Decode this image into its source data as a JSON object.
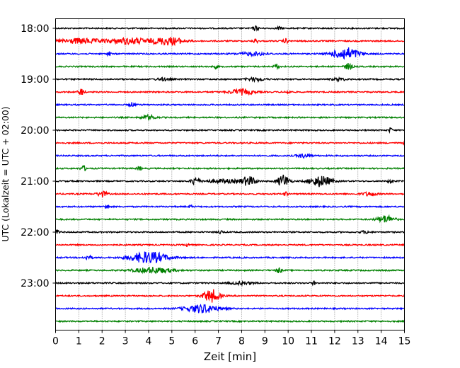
{
  "chart_data": {
    "type": "line",
    "title": "",
    "xlabel": "Zeit  [min]",
    "ylabel": "UTC (Lokalzeit = UTC + 02:00)",
    "xlim": [
      0,
      15
    ],
    "x_ticks": [
      0,
      1,
      2,
      3,
      4,
      5,
      6,
      7,
      8,
      9,
      10,
      11,
      12,
      13,
      14,
      15
    ],
    "vertical_grid": "dotted",
    "row_interval_minutes": 15,
    "row_colors": [
      "#000000",
      "#ff0000",
      "#0000ff",
      "#008000"
    ],
    "y_ticks": [
      "18:00",
      "19:00",
      "20:00",
      "21:00",
      "22:00",
      "23:00"
    ],
    "rows": [
      {
        "start": "18:00",
        "color": "#000000",
        "events": [
          {
            "t": 8.6,
            "a": 0.35,
            "w": 0.12
          },
          {
            "t": 9.6,
            "a": 0.25,
            "w": 0.1
          }
        ]
      },
      {
        "start": "18:15",
        "color": "#ff0000",
        "events": [
          {
            "t": 1.0,
            "a": 0.4,
            "w": 0.9
          },
          {
            "t": 3.2,
            "a": 0.45,
            "w": 1.0
          },
          {
            "t": 4.9,
            "a": 0.6,
            "w": 0.6
          },
          {
            "t": 8.6,
            "a": 0.35,
            "w": 0.1
          },
          {
            "t": 9.9,
            "a": 0.35,
            "w": 0.1
          }
        ]
      },
      {
        "start": "18:30",
        "color": "#0000ff",
        "events": [
          {
            "t": 2.3,
            "a": 0.6,
            "w": 0.06
          },
          {
            "t": 12.5,
            "a": 0.95,
            "w": 0.55
          },
          {
            "t": 8.5,
            "a": 0.25,
            "w": 0.6
          }
        ]
      },
      {
        "start": "18:45",
        "color": "#008000",
        "events": [
          {
            "t": 6.9,
            "a": 0.3,
            "w": 0.08
          },
          {
            "t": 9.5,
            "a": 0.45,
            "w": 0.1
          },
          {
            "t": 12.6,
            "a": 0.5,
            "w": 0.15
          }
        ]
      },
      {
        "start": "19:00",
        "color": "#000000",
        "events": [
          {
            "t": 4.6,
            "a": 0.2,
            "w": 0.3
          },
          {
            "t": 8.6,
            "a": 0.25,
            "w": 0.4
          },
          {
            "t": 12.2,
            "a": 0.2,
            "w": 0.3
          }
        ]
      },
      {
        "start": "19:15",
        "color": "#ff0000",
        "events": [
          {
            "t": 1.1,
            "a": 0.55,
            "w": 0.12
          },
          {
            "t": 8.0,
            "a": 0.45,
            "w": 0.5
          },
          {
            "t": 10.0,
            "a": 0.25,
            "w": 0.1
          }
        ]
      },
      {
        "start": "19:30",
        "color": "#0000ff",
        "events": [
          {
            "t": 3.3,
            "a": 0.35,
            "w": 0.12
          }
        ]
      },
      {
        "start": "19:45",
        "color": "#008000",
        "events": [
          {
            "t": 4.0,
            "a": 0.35,
            "w": 0.3
          }
        ]
      },
      {
        "start": "20:00",
        "color": "#000000",
        "events": [
          {
            "t": 14.4,
            "a": 0.45,
            "w": 0.06
          }
        ]
      },
      {
        "start": "20:15",
        "color": "#ff0000",
        "events": [
          {
            "t": 15.0,
            "a": 0.3,
            "w": 0.05
          }
        ]
      },
      {
        "start": "20:30",
        "color": "#0000ff",
        "events": [
          {
            "t": 10.7,
            "a": 0.3,
            "w": 0.3
          }
        ]
      },
      {
        "start": "20:45",
        "color": "#008000",
        "events": [
          {
            "t": 1.2,
            "a": 0.4,
            "w": 0.12
          },
          {
            "t": 3.6,
            "a": 0.3,
            "w": 0.1
          }
        ]
      },
      {
        "start": "21:00",
        "color": "#000000",
        "events": [
          {
            "t": 6.0,
            "a": 0.7,
            "w": 0.15
          },
          {
            "t": 8.3,
            "a": 0.7,
            "w": 0.3
          },
          {
            "t": 9.8,
            "a": 1.0,
            "w": 0.25
          },
          {
            "t": 11.4,
            "a": 0.85,
            "w": 0.45
          },
          {
            "t": 7.2,
            "a": 0.25,
            "w": 0.8
          },
          {
            "t": 14.4,
            "a": 0.3,
            "w": 0.1
          }
        ]
      },
      {
        "start": "21:15",
        "color": "#ff0000",
        "events": [
          {
            "t": 2.0,
            "a": 0.45,
            "w": 0.2
          },
          {
            "t": 9.9,
            "a": 0.45,
            "w": 0.06
          },
          {
            "t": 13.5,
            "a": 0.3,
            "w": 0.3
          }
        ]
      },
      {
        "start": "21:30",
        "color": "#0000ff",
        "events": [
          {
            "t": 2.2,
            "a": 0.55,
            "w": 0.08
          },
          {
            "t": 5.8,
            "a": 0.3,
            "w": 0.06
          }
        ]
      },
      {
        "start": "21:45",
        "color": "#008000",
        "events": [
          {
            "t": 14.2,
            "a": 0.6,
            "w": 0.35
          }
        ]
      },
      {
        "start": "22:00",
        "color": "#000000",
        "events": [
          {
            "t": 0.1,
            "a": 0.3,
            "w": 0.1
          },
          {
            "t": 7.1,
            "a": 0.25,
            "w": 0.1
          },
          {
            "t": 13.3,
            "a": 0.2,
            "w": 0.2
          }
        ]
      },
      {
        "start": "22:15",
        "color": "#ff0000",
        "events": [
          {
            "t": 5.7,
            "a": 0.5,
            "w": 0.06
          }
        ]
      },
      {
        "start": "22:30",
        "color": "#0000ff",
        "events": [
          {
            "t": 1.4,
            "a": 0.35,
            "w": 0.15
          },
          {
            "t": 4.0,
            "a": 0.9,
            "w": 0.8
          }
        ]
      },
      {
        "start": "22:45",
        "color": "#008000",
        "events": [
          {
            "t": 4.2,
            "a": 0.45,
            "w": 0.8
          },
          {
            "t": 9.6,
            "a": 0.5,
            "w": 0.1
          }
        ]
      },
      {
        "start": "23:00",
        "color": "#000000",
        "events": [
          {
            "t": 11.1,
            "a": 0.45,
            "w": 0.05
          },
          {
            "t": 8.0,
            "a": 0.2,
            "w": 0.5
          }
        ]
      },
      {
        "start": "23:15",
        "color": "#ff0000",
        "events": [
          {
            "t": 6.7,
            "a": 1.0,
            "w": 0.35
          }
        ]
      },
      {
        "start": "23:30",
        "color": "#0000ff",
        "events": [
          {
            "t": 6.3,
            "a": 0.65,
            "w": 0.7
          }
        ]
      },
      {
        "start": "23:45",
        "color": "#008000",
        "events": []
      }
    ]
  }
}
